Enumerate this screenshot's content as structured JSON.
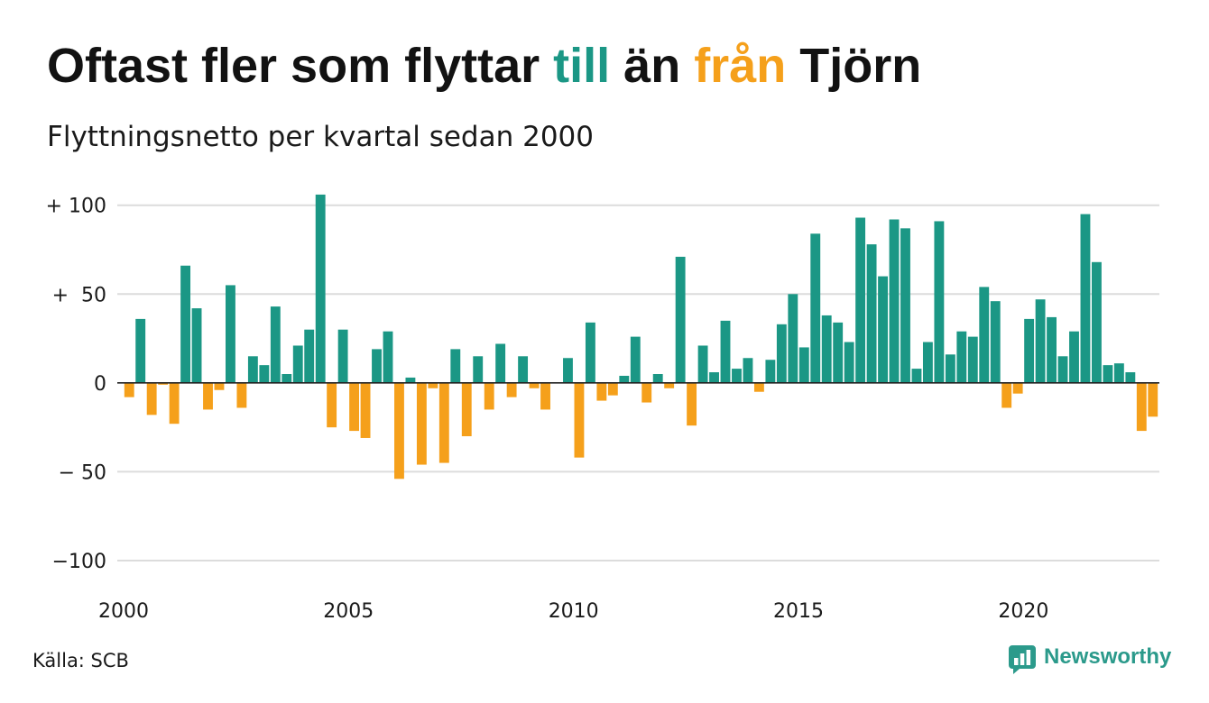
{
  "chart_data": {
    "type": "bar",
    "title": {
      "lead": "Oftast fler som flyttar",
      "positive_word": "till",
      "middle": "än",
      "negative_word": "från",
      "tail": "Tjörn"
    },
    "subtitle": "Flyttningsnetto per kvartal sedan 2000",
    "xlabel": "",
    "ylabel": "",
    "xlim": [
      2000,
      2023
    ],
    "ylim": [
      -100,
      110
    ],
    "grid": true,
    "x_ticks": [
      2000,
      2005,
      2010,
      2015,
      2020
    ],
    "x_tick_labels": [
      "2000",
      "2005",
      "2010",
      "2015",
      "2020"
    ],
    "y_ticks": [
      100,
      50,
      0,
      -50,
      -100
    ],
    "y_tick_labels": [
      "+ 100",
      "+  50",
      "0",
      "− 50",
      "−100"
    ],
    "colors": {
      "positive": "#1b9785",
      "negative": "#f5a01b",
      "grid": "#dcdcdc",
      "zero_line": "#222222",
      "title_text": "#121212"
    },
    "x": [
      2000,
      2000.25,
      2000.5,
      2000.75,
      2001,
      2001.25,
      2001.5,
      2001.75,
      2002,
      2002.25,
      2002.5,
      2002.75,
      2003,
      2003.25,
      2003.5,
      2003.75,
      2004,
      2004.25,
      2004.5,
      2004.75,
      2005,
      2005.25,
      2005.5,
      2005.75,
      2006,
      2006.25,
      2006.5,
      2006.75,
      2007,
      2007.25,
      2007.5,
      2007.75,
      2008,
      2008.25,
      2008.5,
      2008.75,
      2009,
      2009.25,
      2009.5,
      2009.75,
      2010,
      2010.25,
      2010.5,
      2010.75,
      2011,
      2011.25,
      2011.5,
      2011.75,
      2012,
      2012.25,
      2012.5,
      2012.75,
      2013,
      2013.25,
      2013.5,
      2013.75,
      2014,
      2014.25,
      2014.5,
      2014.75,
      2015,
      2015.25,
      2015.5,
      2015.75,
      2016,
      2016.25,
      2016.5,
      2016.75,
      2017,
      2017.25,
      2017.5,
      2017.75,
      2018,
      2018.25,
      2018.5,
      2018.75,
      2019,
      2019.25,
      2019.5,
      2019.75,
      2020,
      2020.25,
      2020.5,
      2020.75,
      2021,
      2021.25,
      2021.5,
      2021.75,
      2022,
      2022.25,
      2022.5,
      2022.75
    ],
    "values": [
      -8,
      36,
      -18,
      -1,
      -23,
      66,
      42,
      -15,
      -4,
      55,
      -14,
      15,
      10,
      43,
      5,
      21,
      30,
      106,
      -25,
      30,
      -27,
      -31,
      19,
      29,
      -54,
      3,
      -46,
      -3,
      -45,
      19,
      -30,
      15,
      -15,
      22,
      -8,
      15,
      -3,
      -15,
      0,
      14,
      -42,
      34,
      -10,
      -7,
      4,
      26,
      -11,
      5,
      -3,
      71,
      -24,
      21,
      6,
      35,
      8,
      14,
      -5,
      13,
      33,
      50,
      20,
      84,
      38,
      34,
      23,
      93,
      78,
      60,
      92,
      87,
      8,
      23,
      91,
      16,
      29,
      26,
      54,
      46,
      -14,
      -6,
      36,
      47,
      37,
      15,
      29,
      95,
      68,
      10,
      11,
      6,
      -27,
      -19
    ]
  },
  "source": "Källa: SCB",
  "logo": {
    "text": "Newsworthy",
    "icon": "newsworthy-logo-icon",
    "color": "#2b9a8b"
  }
}
